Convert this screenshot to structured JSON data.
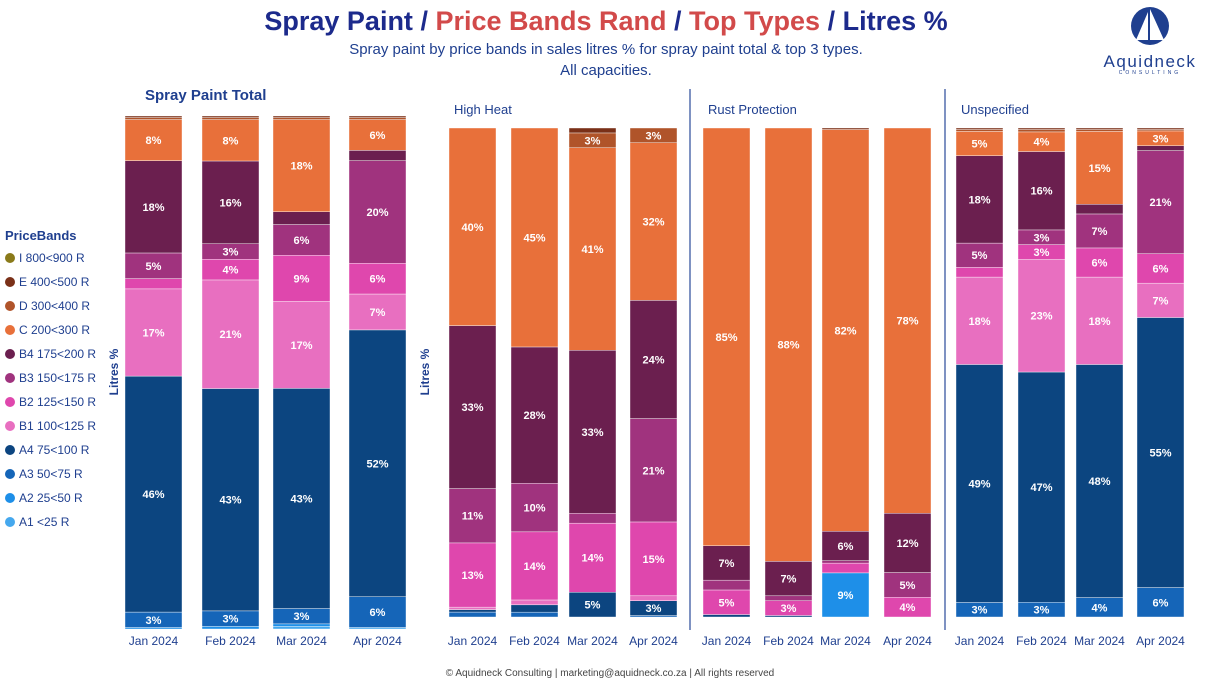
{
  "title": {
    "part1": "Spray Paint",
    "sep1": " / ",
    "part2": "Price Bands Rand",
    "sep2": " / ",
    "part3": "Top Types",
    "sep3": " / ",
    "part4": "Litres %"
  },
  "subtitle": "Spray paint by price bands in sales litres % for spray paint total & top 3 types.",
  "subtitle2": "All capacities.",
  "logo": {
    "name": "Aquidneck",
    "tagline": "CONSULTING"
  },
  "legend": {
    "title": "PriceBands",
    "items": [
      {
        "label": "I 800<900 R",
        "color": "#8a7a1a"
      },
      {
        "label": "E 400<500 R",
        "color": "#7a3018"
      },
      {
        "label": "D 300<400 R",
        "color": "#b0542a"
      },
      {
        "label": "C 200<300 R",
        "color": "#e8703a"
      },
      {
        "label": "B4 175<200 R",
        "color": "#6b1f4f"
      },
      {
        "label": "B3 150<175 R",
        "color": "#a0337e"
      },
      {
        "label": "B2 125<150 R",
        "color": "#df47ad"
      },
      {
        "label": "B1 100<125 R",
        "color": "#e86fc0"
      },
      {
        "label": "A4 75<100 R",
        "color": "#0c4580"
      },
      {
        "label": "A3 50<75 R",
        "color": "#1565b8"
      },
      {
        "label": "A2 25<50 R",
        "color": "#1e8fe8"
      },
      {
        "label": "A1 <25 R",
        "color": "#45a8ee"
      }
    ]
  },
  "footer": "© Aquidneck Consulting  | marketing@aquidneck.co.za | All rights reserved",
  "chart_data": [
    {
      "type": "bar",
      "stacked": true,
      "title": "Spray Paint Total",
      "ylabel": "Litres %",
      "ylim": [
        0,
        100
      ],
      "categories": [
        "Jan 2024",
        "Feb 2024",
        "Mar 2024",
        "Apr 2024"
      ],
      "series": [
        {
          "name": "A1 <25 R",
          "values": [
            0,
            0,
            0.5,
            0.3
          ]
        },
        {
          "name": "A2 25<50 R",
          "values": [
            0.3,
            0.5,
            0.5,
            0
          ]
        },
        {
          "name": "A3 50<75 R",
          "values": [
            3,
            3,
            3,
            6
          ]
        },
        {
          "name": "A4 75<100 R",
          "values": [
            46,
            43,
            43,
            52
          ]
        },
        {
          "name": "B1 100<125 R",
          "values": [
            17,
            21,
            17,
            7
          ]
        },
        {
          "name": "B2 125<150 R",
          "values": [
            2,
            4,
            9,
            6
          ]
        },
        {
          "name": "B3 150<175 R",
          "values": [
            5,
            3,
            6,
            20
          ]
        },
        {
          "name": "B4 175<200 R",
          "values": [
            18,
            16,
            2.5,
            2
          ]
        },
        {
          "name": "C 200<300 R",
          "values": [
            8,
            8,
            18,
            6
          ]
        },
        {
          "name": "D 300<400 R",
          "values": [
            0.4,
            0.4,
            0.4,
            0.4
          ]
        },
        {
          "name": "E 400<500 R",
          "values": [
            0.3,
            0.3,
            0.3,
            0.3
          ]
        },
        {
          "name": "I 800<900 R",
          "values": [
            0,
            0,
            0,
            0
          ]
        }
      ]
    },
    {
      "type": "bar",
      "stacked": true,
      "title": "High Heat",
      "ylabel": "Litres %",
      "ylim": [
        0,
        100
      ],
      "categories": [
        "Jan 2024",
        "Feb 2024",
        "Mar 2024",
        "Apr 2024"
      ],
      "series": [
        {
          "name": "A1 <25 R",
          "values": [
            0,
            0,
            0,
            0
          ]
        },
        {
          "name": "A2 25<50 R",
          "values": [
            0,
            0,
            0,
            0
          ]
        },
        {
          "name": "A3 50<75 R",
          "values": [
            1,
            1,
            0,
            0.3
          ]
        },
        {
          "name": "A4 75<100 R",
          "values": [
            0.5,
            1.5,
            5,
            3
          ]
        },
        {
          "name": "B1 100<125 R",
          "values": [
            0.5,
            1,
            0,
            1
          ]
        },
        {
          "name": "B2 125<150 R",
          "values": [
            13,
            14,
            14,
            15
          ]
        },
        {
          "name": "B3 150<175 R",
          "values": [
            11,
            10,
            2,
            21
          ]
        },
        {
          "name": "B4 175<200 R",
          "values": [
            33,
            28,
            33,
            24
          ]
        },
        {
          "name": "C 200<300 R",
          "values": [
            40,
            45,
            41,
            32
          ]
        },
        {
          "name": "D 300<400 R",
          "values": [
            0,
            0,
            3,
            3
          ]
        },
        {
          "name": "E 400<500 R",
          "values": [
            0,
            0,
            1,
            0
          ]
        },
        {
          "name": "I 800<900 R",
          "values": [
            0,
            0,
            0,
            0
          ]
        }
      ]
    },
    {
      "type": "bar",
      "stacked": true,
      "title": "Rust Protection",
      "ylabel": "",
      "ylim": [
        0,
        100
      ],
      "categories": [
        "Jan 2024",
        "Feb 2024",
        "Mar 2024",
        "Apr 2024"
      ],
      "series": [
        {
          "name": "A1 <25 R",
          "values": [
            0,
            0,
            0,
            0
          ]
        },
        {
          "name": "A2 25<50 R",
          "values": [
            0,
            0,
            9,
            0
          ]
        },
        {
          "name": "A3 50<75 R",
          "values": [
            0,
            0,
            0,
            0
          ]
        },
        {
          "name": "A4 75<100 R",
          "values": [
            0.5,
            0.3,
            0,
            0
          ]
        },
        {
          "name": "B1 100<125 R",
          "values": [
            0,
            0,
            0,
            0
          ]
        },
        {
          "name": "B2 125<150 R",
          "values": [
            5,
            3,
            2,
            4
          ]
        },
        {
          "name": "B3 150<175 R",
          "values": [
            2,
            1,
            0.5,
            5
          ]
        },
        {
          "name": "B4 175<200 R",
          "values": [
            7,
            7,
            6,
            12
          ]
        },
        {
          "name": "C 200<300 R",
          "values": [
            85,
            88,
            82,
            78
          ]
        },
        {
          "name": "D 300<400 R",
          "values": [
            0,
            0,
            0,
            0
          ]
        },
        {
          "name": "E 400<500 R",
          "values": [
            0,
            0,
            0.3,
            0
          ]
        },
        {
          "name": "I 800<900 R",
          "values": [
            0,
            0,
            0,
            0
          ]
        }
      ]
    },
    {
      "type": "bar",
      "stacked": true,
      "title": "Unspecified",
      "ylabel": "",
      "ylim": [
        0,
        100
      ],
      "categories": [
        "Jan 2024",
        "Feb 2024",
        "Mar 2024",
        "Apr 2024"
      ],
      "series": [
        {
          "name": "A1 <25 R",
          "values": [
            0,
            0,
            0,
            0
          ]
        },
        {
          "name": "A2 25<50 R",
          "values": [
            0,
            0,
            0,
            0
          ]
        },
        {
          "name": "A3 50<75 R",
          "values": [
            3,
            3,
            4,
            6
          ]
        },
        {
          "name": "A4 75<100 R",
          "values": [
            49,
            47,
            48,
            55
          ]
        },
        {
          "name": "B1 100<125 R",
          "values": [
            18,
            23,
            18,
            7
          ]
        },
        {
          "name": "B2 125<150 R",
          "values": [
            2,
            3,
            6,
            6
          ]
        },
        {
          "name": "B3 150<175 R",
          "values": [
            5,
            3,
            7,
            21
          ]
        },
        {
          "name": "B4 175<200 R",
          "values": [
            18,
            16,
            2,
            1
          ]
        },
        {
          "name": "C 200<300 R",
          "values": [
            5,
            4,
            15,
            3
          ]
        },
        {
          "name": "D 300<400 R",
          "values": [
            0.4,
            0.5,
            0.4,
            0.3
          ]
        },
        {
          "name": "E 400<500 R",
          "values": [
            0.3,
            0.3,
            0.3,
            0.3
          ]
        },
        {
          "name": "I 800<900 R",
          "values": [
            0,
            0,
            0,
            0
          ]
        }
      ]
    }
  ]
}
